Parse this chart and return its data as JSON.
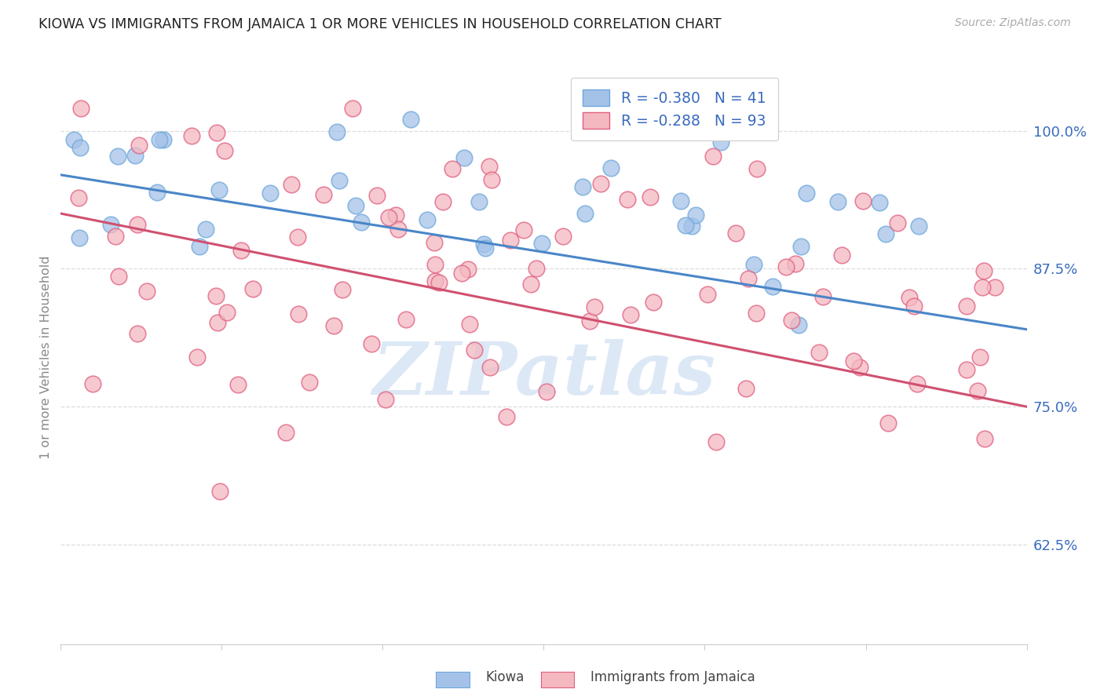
{
  "title": "KIOWA VS IMMIGRANTS FROM JAMAICA 1 OR MORE VEHICLES IN HOUSEHOLD CORRELATION CHART",
  "source": "Source: ZipAtlas.com",
  "ylabel": "1 or more Vehicles in Household",
  "ytick_labels": [
    "100.0%",
    "87.5%",
    "75.0%",
    "62.5%"
  ],
  "ytick_values": [
    1.0,
    0.875,
    0.75,
    0.625
  ],
  "legend_line1": "R = -0.380   N = 41",
  "legend_line2": "R = -0.288   N = 93",
  "legend_label1": "Kiowa",
  "legend_label2": "Immigrants from Jamaica",
  "kiowa_color": "#a4c2e8",
  "jamaica_color": "#f4b8c1",
  "kiowa_edge_color": "#6fa8dc",
  "jamaica_edge_color": "#e06080",
  "kiowa_line_color": "#4a86c8",
  "jamaica_line_color": "#d05070",
  "background_color": "#ffffff",
  "grid_color": "#dddddd",
  "title_color": "#222222",
  "source_color": "#aaaaaa",
  "axis_label_color": "#3a6bbf",
  "ylabel_color": "#888888",
  "xlim": [
    0.0,
    0.3
  ],
  "ylim": [
    0.535,
    1.055
  ],
  "watermark_text": "ZIPatlas",
  "watermark_color": "#dce8f5",
  "figsize": [
    14.06,
    8.92
  ],
  "dpi": 100
}
